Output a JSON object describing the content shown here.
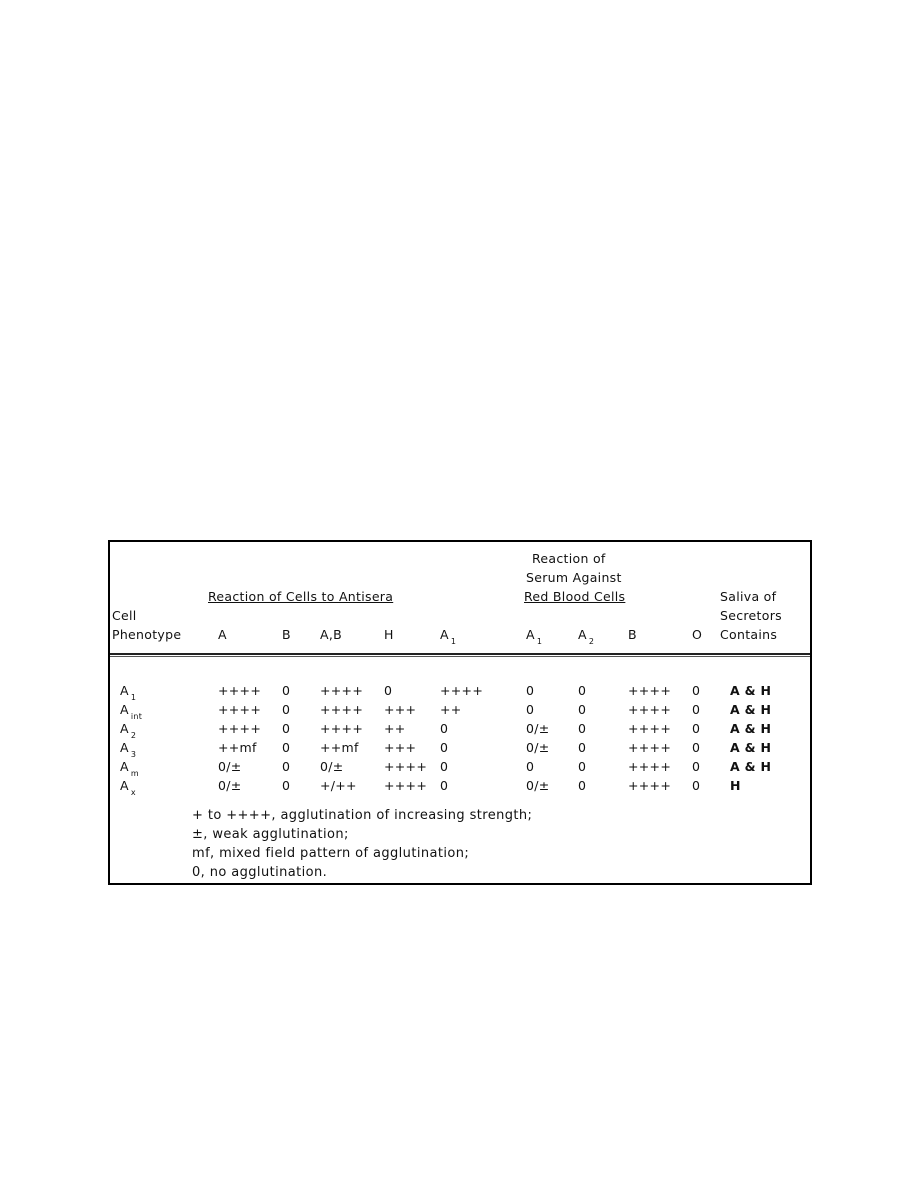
{
  "header": {
    "group_cells": "Reaction of Cells to Antisera",
    "group_serum_line1": "Reaction of",
    "group_serum_line2": "Serum Against",
    "group_serum_line3": "Red Blood Cells",
    "saliva_line1": "Saliva of",
    "saliva_line2": "Secretors",
    "saliva_line3": "Contains",
    "cell_line1": "Cell",
    "cell_line2": "Phenotype",
    "columns": [
      {
        "main": "A",
        "sub": ""
      },
      {
        "main": "B",
        "sub": ""
      },
      {
        "main": "A,B",
        "sub": ""
      },
      {
        "main": "H",
        "sub": ""
      },
      {
        "main": "A",
        "sub": "1"
      },
      {
        "main": "A",
        "sub": "1"
      },
      {
        "main": "A",
        "sub": "2"
      },
      {
        "main": "B",
        "sub": ""
      },
      {
        "main": "O",
        "sub": ""
      }
    ]
  },
  "rows": [
    {
      "phenotype": "A",
      "sub": "1",
      "cells": [
        "++++",
        "0",
        "++++",
        "0",
        "++++",
        "0",
        "0",
        "++++",
        "0"
      ],
      "saliva": "A & H"
    },
    {
      "phenotype": "A",
      "sub": "int",
      "cells": [
        "++++",
        "0",
        "++++",
        "+++",
        "++",
        "0",
        "0",
        "++++",
        "0"
      ],
      "saliva": "A & H"
    },
    {
      "phenotype": "A",
      "sub": "2",
      "cells": [
        "++++",
        "0",
        "++++",
        "++",
        "0",
        "0/±",
        "0",
        "++++",
        "0"
      ],
      "saliva": "A & H"
    },
    {
      "phenotype": "A",
      "sub": "3",
      "cells": [
        "++mf",
        "0",
        "++mf",
        "+++",
        "0",
        "0/±",
        "0",
        "++++",
        "0"
      ],
      "saliva": "A & H"
    },
    {
      "phenotype": "A",
      "sub": "m",
      "cells": [
        "0/±",
        "0",
        "0/±",
        "++++",
        "0",
        "0",
        "0",
        "++++",
        "0"
      ],
      "saliva": "A & H"
    },
    {
      "phenotype": "A",
      "sub": "x",
      "cells": [
        "0/±",
        "0",
        "+/++",
        "++++",
        "0",
        "0/±",
        "0",
        "++++",
        "0"
      ],
      "saliva": "H"
    }
  ],
  "legend": [
    "+ to ++++, agglutination of increasing strength;",
    "±, weak agglutination;",
    "mf, mixed field pattern of agglutination;",
    "0, no agglutination."
  ]
}
